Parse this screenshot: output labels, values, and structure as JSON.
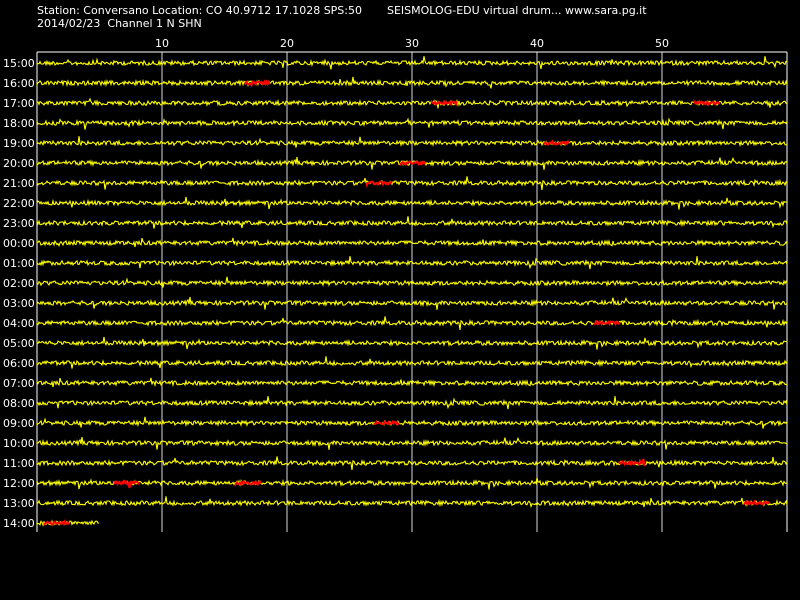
{
  "header": {
    "station": "Station: Conversano Location: CO 40.9712 17.1028 SPS:50",
    "title": "SEISMOLOG-EDU virtual drum... www.sara.pg.it",
    "date_channel": "2014/02/23  Channel 1 N SHN"
  },
  "colors": {
    "background": "#000000",
    "trace": "#ffff00",
    "event": "#ff0000",
    "grid": "#ffffff"
  },
  "chart_data": {
    "type": "helicorder",
    "x_ticks": [
      "10",
      "20",
      "30",
      "40",
      "50"
    ],
    "x_range_minutes": [
      0,
      60
    ],
    "rows": [
      {
        "label": "15:00",
        "events": []
      },
      {
        "label": "16:00",
        "events": [
          [
            16.6,
            18.6
          ]
        ]
      },
      {
        "label": "17:00",
        "events": [
          [
            31.6,
            33.6
          ],
          [
            52.6,
            54.6
          ]
        ]
      },
      {
        "label": "18:00",
        "events": []
      },
      {
        "label": "19:00",
        "events": [
          [
            40.6,
            42.6
          ]
        ]
      },
      {
        "label": "20:00",
        "events": [
          [
            29.1,
            31.1
          ]
        ]
      },
      {
        "label": "21:00",
        "events": [
          [
            26.4,
            28.4
          ]
        ]
      },
      {
        "label": "22:00",
        "events": []
      },
      {
        "label": "23:00",
        "events": []
      },
      {
        "label": "00:00",
        "events": []
      },
      {
        "label": "01:00",
        "events": []
      },
      {
        "label": "02:00",
        "events": []
      },
      {
        "label": "03:00",
        "events": []
      },
      {
        "label": "04:00",
        "events": [
          [
            44.6,
            46.6
          ]
        ]
      },
      {
        "label": "05:00",
        "events": []
      },
      {
        "label": "06:00",
        "events": []
      },
      {
        "label": "07:00",
        "events": []
      },
      {
        "label": "08:00",
        "events": []
      },
      {
        "label": "09:00",
        "events": [
          [
            27.0,
            29.0
          ]
        ]
      },
      {
        "label": "10:00",
        "events": []
      },
      {
        "label": "11:00",
        "events": [
          [
            46.6,
            48.6
          ]
        ]
      },
      {
        "label": "12:00",
        "events": [
          [
            6.2,
            8.2
          ],
          [
            15.9,
            17.9
          ]
        ]
      },
      {
        "label": "13:00",
        "events": [
          [
            56.6,
            58.6
          ]
        ]
      },
      {
        "label": "14:00",
        "events": [
          [
            0.6,
            2.6
          ]
        ],
        "end_minute": 5
      }
    ]
  }
}
